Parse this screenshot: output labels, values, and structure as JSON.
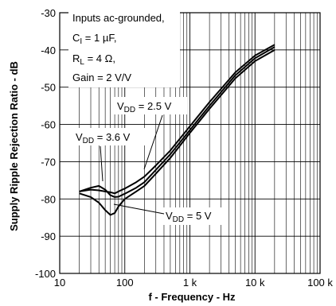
{
  "chart_data": {
    "type": "line",
    "xlabel": "f - Frequency - Hz",
    "ylabel": "Supply Ripple Rejection Ratio - dB",
    "x_scale": "log",
    "xlim": [
      10,
      100000
    ],
    "ylim": [
      -100,
      -30
    ],
    "x_ticks": [
      {
        "value": 10,
        "label": "10"
      },
      {
        "value": 100,
        "label": "100"
      },
      {
        "value": 1000,
        "label": "1 k"
      },
      {
        "value": 10000,
        "label": "10 k"
      },
      {
        "value": 100000,
        "label": "100 k"
      }
    ],
    "y_ticks": [
      {
        "value": -30,
        "label": "-30"
      },
      {
        "value": -40,
        "label": "-40"
      },
      {
        "value": -50,
        "label": "-50"
      },
      {
        "value": -60,
        "label": "-60"
      },
      {
        "value": -70,
        "label": "-70"
      },
      {
        "value": -80,
        "label": "-80"
      },
      {
        "value": -90,
        "label": "-90"
      },
      {
        "value": -100,
        "label": "-100"
      }
    ],
    "grid": true,
    "conditions": {
      "line1": "Inputs ac-grounded,",
      "line2_main": "C",
      "line2_sub": "I",
      "line2_rest": " = 1 µF,",
      "line3_main": "R",
      "line3_sub": "L",
      "line3_rest": " = 4 Ω,",
      "line4": "Gain = 2 V/V"
    },
    "series": [
      {
        "label_main": "V",
        "label_sub": "DD",
        "label_rest": " = 2.5 V",
        "x": [
          20,
          30,
          40,
          50,
          60,
          70,
          80,
          100,
          150,
          200,
          300,
          500,
          1000,
          2000,
          5000,
          10000,
          20000
        ],
        "y": [
          -78,
          -77.5,
          -77.7,
          -78,
          -78.2,
          -78.5,
          -78,
          -77.2,
          -75.5,
          -74,
          -71,
          -67,
          -60.5,
          -54,
          -46,
          -41.5,
          -38.6
        ]
      },
      {
        "label_main": "V",
        "label_sub": "DD",
        "label_rest": " = 3.6 V",
        "x": [
          20,
          30,
          40,
          50,
          60,
          70,
          80,
          100,
          150,
          200,
          300,
          500,
          1000,
          2000,
          5000,
          10000,
          20000
        ],
        "y": [
          -78,
          -77,
          -76.5,
          -77.5,
          -79,
          -79.5,
          -79.4,
          -78.6,
          -77,
          -75.5,
          -72.2,
          -68,
          -61.5,
          -55,
          -46.8,
          -42.2,
          -39.2
        ]
      },
      {
        "label_main": "V",
        "label_sub": "DD",
        "label_rest": " = 5 V",
        "x": [
          20,
          30,
          40,
          50,
          60,
          70,
          80,
          100,
          150,
          200,
          300,
          500,
          1000,
          2000,
          5000,
          10000,
          20000
        ],
        "y": [
          -78.5,
          -79.5,
          -81,
          -83,
          -84.3,
          -83.8,
          -82,
          -80,
          -78,
          -76.5,
          -73.2,
          -69,
          -62.3,
          -55.8,
          -47.6,
          -43,
          -40
        ]
      }
    ]
  }
}
